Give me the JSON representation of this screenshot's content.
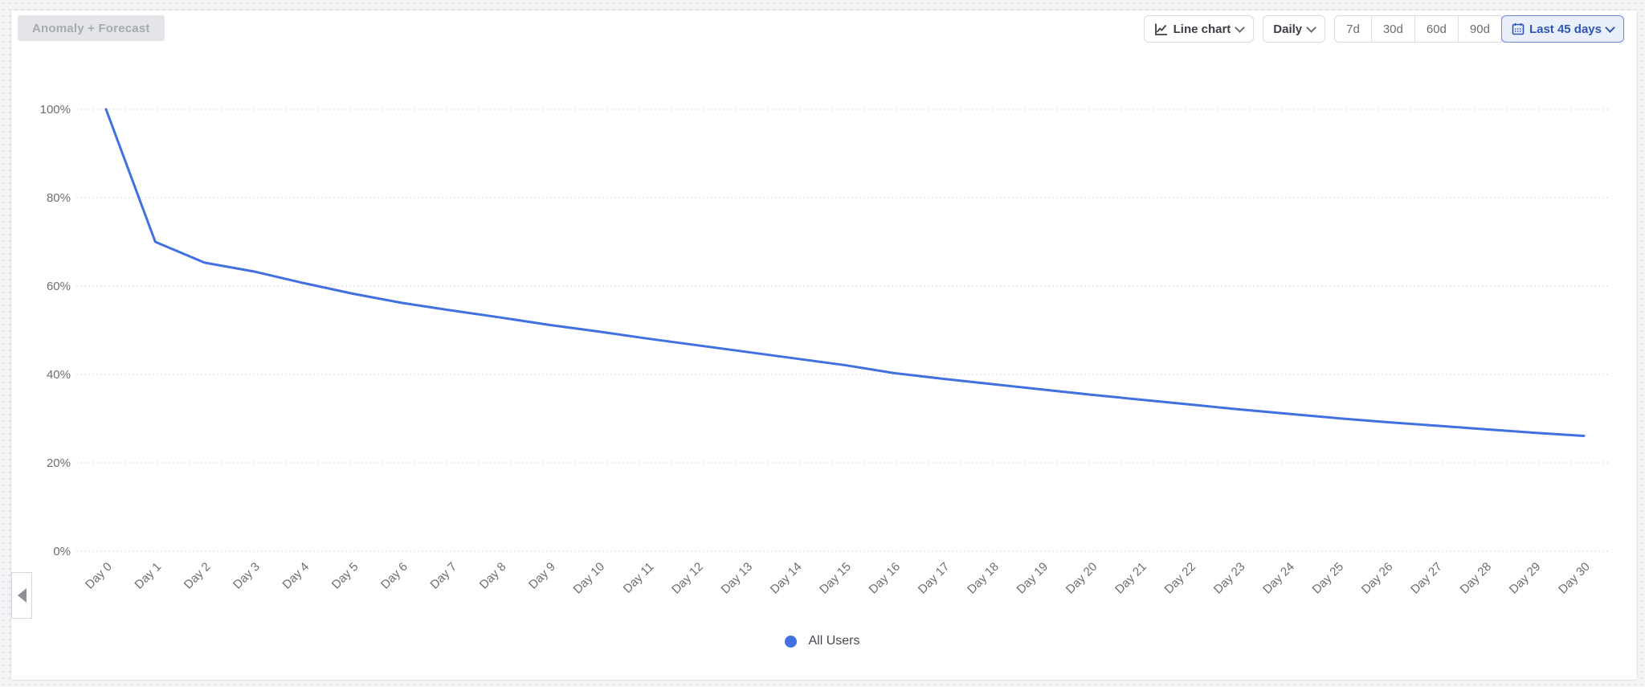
{
  "toolbar": {
    "anomaly_label": "Anomaly + Forecast",
    "chart_type_label": "Line chart",
    "interval_label": "Daily",
    "ranges": [
      "7d",
      "30d",
      "60d",
      "90d"
    ],
    "date_range_label": "Last 45 days"
  },
  "legend": {
    "items": [
      {
        "label": "All Users",
        "color": "#4170e0"
      }
    ]
  },
  "colors": {
    "line": "#4170e0",
    "selected_range_bg": "#eaf0fb",
    "selected_range_text": "#2e54b5",
    "selected_range_border": "#6d87d6",
    "axis_text": "#6a6d72",
    "gridline": "#d9dadc",
    "disabled_chip_bg": "#e4e5e8",
    "disabled_chip_text": "#a7aaaf"
  },
  "chart_data": {
    "type": "line",
    "title": "",
    "xlabel": "",
    "ylabel": "",
    "ylim": [
      0,
      100
    ],
    "grid": "horizontal-dotted",
    "legend_position": "bottom",
    "y_tick_values": [
      0,
      20,
      40,
      60,
      80,
      100
    ],
    "y_tick_labels": [
      "0%",
      "20%",
      "40%",
      "60%",
      "80%",
      "100%"
    ],
    "categories": [
      "Day 0",
      "Day 1",
      "Day 2",
      "Day 3",
      "Day 4",
      "Day 5",
      "Day 6",
      "Day 7",
      "Day 8",
      "Day 9",
      "Day 10",
      "Day 11",
      "Day 12",
      "Day 13",
      "Day 14",
      "Day 15",
      "Day 16",
      "Day 17",
      "Day 18",
      "Day 19",
      "Day 20",
      "Day 21",
      "Day 22",
      "Day 23",
      "Day 24",
      "Day 25",
      "Day 26",
      "Day 27",
      "Day 28",
      "Day 29",
      "Day 30"
    ],
    "series": [
      {
        "name": "All Users",
        "color": "#4170e0",
        "values": [
          100,
          70,
          65.3,
          63.3,
          60.7,
          58.3,
          56.2,
          54.5,
          52.9,
          51.2,
          49.7,
          48.1,
          46.6,
          45.1,
          43.6,
          42.1,
          40.3,
          39.0,
          37.8,
          36.6,
          35.4,
          34.3,
          33.2,
          32.1,
          31.1,
          30.1,
          29.2,
          28.4,
          27.6,
          26.8,
          26.1
        ]
      }
    ]
  }
}
